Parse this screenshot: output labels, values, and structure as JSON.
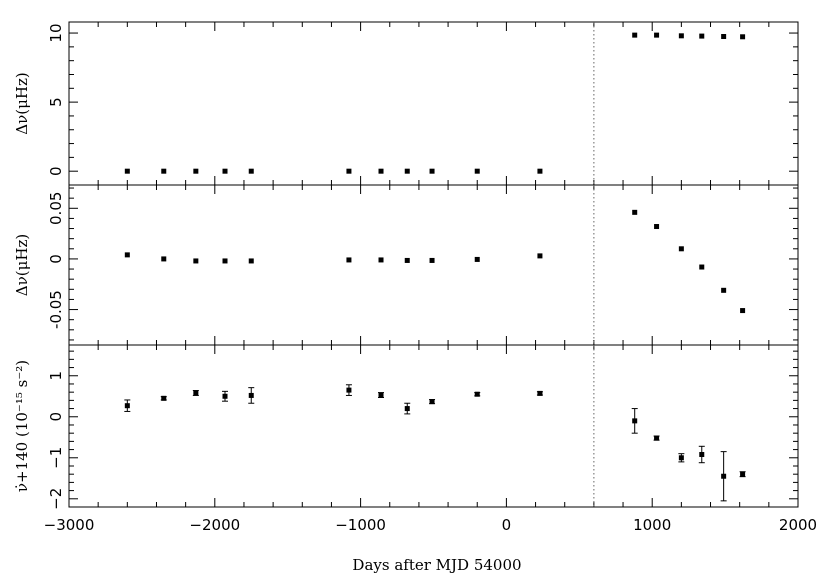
{
  "chart_data": [
    {
      "type": "scatter",
      "ylabel": "Δν(μHz)",
      "ylim": [
        -1,
        10.8
      ],
      "yticks": [
        0,
        5,
        10
      ],
      "yticklabels": [
        "0",
        "5",
        "10"
      ],
      "series": [
        {
          "x": [
            -2600,
            -2350,
            -2130,
            -1930,
            -1750,
            -1080,
            -860,
            -680,
            -510,
            -200,
            230,
            880,
            1030,
            1200,
            1340,
            1490,
            1620
          ],
          "y": [
            0,
            0,
            0,
            0,
            0,
            0,
            0,
            0,
            0,
            0,
            0,
            9.85,
            9.85,
            9.8,
            9.78,
            9.75,
            9.73
          ]
        }
      ]
    },
    {
      "type": "scatter",
      "ylabel": "Δν(μHz)",
      "ylim": [
        -0.085,
        0.073
      ],
      "yticks": [
        -0.05,
        0,
        0.05
      ],
      "yticklabels": [
        "-0.05",
        "0",
        "0.05"
      ],
      "series": [
        {
          "x": [
            -2600,
            -2350,
            -2130,
            -1930,
            -1750,
            -1080,
            -860,
            -680,
            -510,
            -200,
            230,
            880,
            1030,
            1200,
            1340,
            1490,
            1620
          ],
          "y": [
            0.004,
            0.0,
            -0.002,
            -0.002,
            -0.002,
            -0.001,
            -0.001,
            -0.0015,
            -0.0015,
            -0.0005,
            0.003,
            0.046,
            0.032,
            0.01,
            -0.008,
            -0.031,
            -0.051
          ]
        }
      ]
    },
    {
      "type": "scatter",
      "ylabel": "ν̇+140 (10⁻¹⁵ s⁻²)",
      "xlabel": "Days after MJD 54000",
      "xlim": [
        -3000,
        2000
      ],
      "xticks": [
        -3000,
        -2000,
        -1000,
        0,
        1000,
        2000
      ],
      "xticklabels": [
        "−3000",
        "−2000",
        "−1000",
        "0",
        "1000",
        "2000"
      ],
      "ylim": [
        -2.2,
        1.75
      ],
      "yticks": [
        -2,
        -1,
        0,
        1
      ],
      "yticklabels": [
        "−2",
        "−1",
        "0",
        "1"
      ],
      "series": [
        {
          "x": [
            -2600,
            -2350,
            -2130,
            -1930,
            -1750,
            -1080,
            -860,
            -680,
            -510,
            -200,
            230,
            880,
            1030,
            1200,
            1340,
            1490,
            1620
          ],
          "y": [
            0.27,
            0.45,
            0.58,
            0.5,
            0.52,
            0.65,
            0.53,
            0.2,
            0.37,
            0.55,
            0.57,
            -0.1,
            -0.52,
            -1.0,
            -0.92,
            -1.45,
            -1.4
          ],
          "err": [
            0.14,
            0.04,
            0.06,
            0.12,
            0.19,
            0.13,
            0.06,
            0.13,
            0.05,
            0.04,
            0.04,
            0.3,
            0.05,
            0.1,
            0.2,
            0.6,
            0.06
          ]
        }
      ]
    }
  ],
  "marker": {
    "event_x": 600
  },
  "colors": {
    "ink": "#000000",
    "guide": "#666666"
  }
}
